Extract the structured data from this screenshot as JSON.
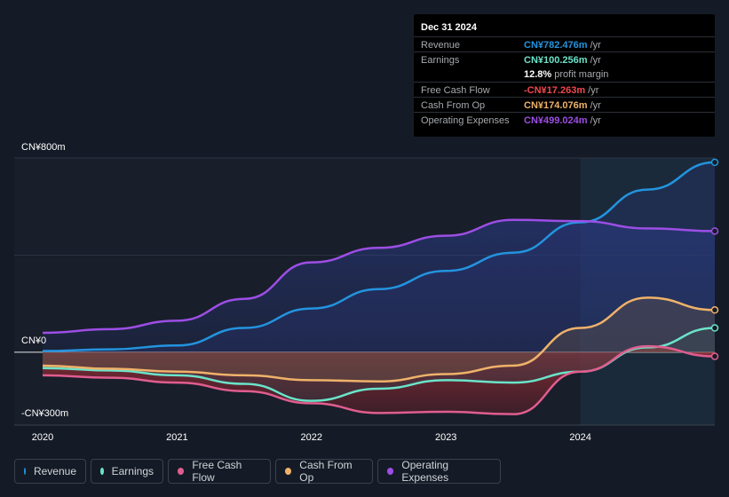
{
  "chart_data": {
    "type": "area",
    "title": "",
    "xlabel": "",
    "ylabel": "",
    "units": "CN¥m",
    "ylim": [
      -300,
      800
    ],
    "y_tick_labels": [
      {
        "value": 800,
        "label": "CN¥800m"
      },
      {
        "value": 0,
        "label": "CN¥0"
      },
      {
        "value": -300,
        "label": "-CN¥300m"
      }
    ],
    "x_ticks": [
      2020,
      2021,
      2022,
      2023,
      2024
    ],
    "x_range": [
      2020,
      2025.0
    ],
    "highlight_start": 2024,
    "series": [
      {
        "name": "Revenue",
        "color": "#2394df",
        "x": [
          2020,
          2020.5,
          2021,
          2021.5,
          2022,
          2022.5,
          2023,
          2023.5,
          2024,
          2024.5,
          2025.0
        ],
        "values": [
          5,
          12,
          28,
          100,
          180,
          260,
          335,
          410,
          535,
          670,
          782
        ]
      },
      {
        "name": "Earnings",
        "color": "#6be3c9",
        "x": [
          2020,
          2020.5,
          2021,
          2021.5,
          2022,
          2022.5,
          2023,
          2023.5,
          2024,
          2024.5,
          2025.0
        ],
        "values": [
          -65,
          -75,
          -95,
          -130,
          -200,
          -150,
          -115,
          -125,
          -80,
          20,
          100
        ]
      },
      {
        "name": "Free Cash Flow",
        "color": "#e05d8f",
        "x": [
          2020,
          2020.5,
          2021,
          2021.5,
          2022,
          2022.5,
          2023,
          2023.5,
          2024,
          2024.5,
          2025.0
        ],
        "values": [
          -95,
          -105,
          -125,
          -160,
          -210,
          -250,
          -245,
          -255,
          -80,
          25,
          -17
        ]
      },
      {
        "name": "Cash From Op",
        "color": "#efb26a",
        "x": [
          2020,
          2020.5,
          2021,
          2021.5,
          2022,
          2022.5,
          2023,
          2023.5,
          2024,
          2024.5,
          2025.0
        ],
        "values": [
          -55,
          -68,
          -80,
          -95,
          -115,
          -120,
          -90,
          -55,
          100,
          225,
          174
        ]
      },
      {
        "name": "Operating Expenses",
        "color": "#9d4ee5",
        "x": [
          2020,
          2020.5,
          2021,
          2021.5,
          2022,
          2022.5,
          2023,
          2023.5,
          2024,
          2024.5,
          2025.0
        ],
        "values": [
          80,
          95,
          130,
          220,
          370,
          430,
          480,
          545,
          540,
          510,
          499
        ]
      }
    ]
  },
  "tooltip": {
    "date": "Dec 31 2024",
    "rows": [
      {
        "label": "Revenue",
        "value": "CN¥782.476m",
        "unit": "/yr",
        "color": "#2394df"
      },
      {
        "label": "Earnings",
        "value": "CN¥100.256m",
        "unit": "/yr",
        "color": "#6be3c9"
      },
      {
        "label": "",
        "value": "12.8%",
        "unit": "profit margin",
        "color": "#ffffff"
      },
      {
        "label": "Free Cash Flow",
        "value": "-CN¥17.263m",
        "unit": "/yr",
        "color": "#f0484f"
      },
      {
        "label": "Cash From Op",
        "value": "CN¥174.076m",
        "unit": "/yr",
        "color": "#efb26a"
      },
      {
        "label": "Operating Expenses",
        "value": "CN¥499.024m",
        "unit": "/yr",
        "color": "#9d4ee5"
      }
    ]
  },
  "legend": [
    {
      "label": "Revenue",
      "color": "#2394df"
    },
    {
      "label": "Earnings",
      "color": "#6be3c9"
    },
    {
      "label": "Free Cash Flow",
      "color": "#e05d8f"
    },
    {
      "label": "Cash From Op",
      "color": "#efb26a"
    },
    {
      "label": "Operating Expenses",
      "color": "#9d4ee5"
    }
  ]
}
